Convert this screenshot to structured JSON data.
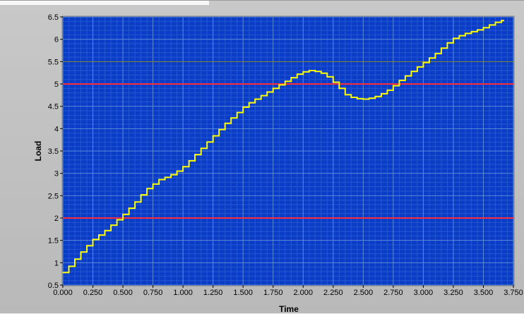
{
  "chart_data": {
    "type": "line",
    "title": "",
    "xlabel": "Time",
    "ylabel": "Load",
    "xlim": [
      0,
      3.75
    ],
    "ylim": [
      0.5,
      6.5
    ],
    "x_ticks": [
      "0.000",
      "0.250",
      "0.500",
      "0.750",
      "1.000",
      "1.250",
      "1.500",
      "1.750",
      "2.000",
      "2.250",
      "2.500",
      "2.750",
      "3.000",
      "3.250",
      "3.500",
      "3.750"
    ],
    "y_ticks": [
      "0.5",
      "1",
      "1.5",
      "2",
      "2.5",
      "3",
      "3.5",
      "4",
      "4.5",
      "5",
      "5.5",
      "6",
      "6.5"
    ],
    "grid": true,
    "legend": "none",
    "step": true,
    "series": [
      {
        "color": "#ffff00",
        "points": [
          [
            0.0,
            0.78
          ],
          [
            0.05,
            0.92
          ],
          [
            0.1,
            1.08
          ],
          [
            0.15,
            1.24
          ],
          [
            0.2,
            1.38
          ],
          [
            0.25,
            1.52
          ],
          [
            0.3,
            1.62
          ],
          [
            0.35,
            1.72
          ],
          [
            0.4,
            1.84
          ],
          [
            0.45,
            1.96
          ],
          [
            0.5,
            2.08
          ],
          [
            0.55,
            2.22
          ],
          [
            0.6,
            2.36
          ],
          [
            0.65,
            2.52
          ],
          [
            0.7,
            2.66
          ],
          [
            0.75,
            2.76
          ],
          [
            0.8,
            2.86
          ],
          [
            0.85,
            2.91
          ],
          [
            0.9,
            2.97
          ],
          [
            0.95,
            3.05
          ],
          [
            1.0,
            3.15
          ],
          [
            1.05,
            3.28
          ],
          [
            1.1,
            3.42
          ],
          [
            1.15,
            3.56
          ],
          [
            1.2,
            3.7
          ],
          [
            1.25,
            3.84
          ],
          [
            1.3,
            3.98
          ],
          [
            1.35,
            4.12
          ],
          [
            1.4,
            4.24
          ],
          [
            1.45,
            4.36
          ],
          [
            1.5,
            4.48
          ],
          [
            1.55,
            4.58
          ],
          [
            1.6,
            4.66
          ],
          [
            1.65,
            4.74
          ],
          [
            1.7,
            4.82
          ],
          [
            1.75,
            4.9
          ],
          [
            1.8,
            4.98
          ],
          [
            1.85,
            5.06
          ],
          [
            1.9,
            5.14
          ],
          [
            1.95,
            5.22
          ],
          [
            2.0,
            5.27
          ],
          [
            2.05,
            5.3
          ],
          [
            2.1,
            5.28
          ],
          [
            2.15,
            5.24
          ],
          [
            2.2,
            5.16
          ],
          [
            2.25,
            5.04
          ],
          [
            2.3,
            4.9
          ],
          [
            2.35,
            4.76
          ],
          [
            2.4,
            4.7
          ],
          [
            2.45,
            4.67
          ],
          [
            2.5,
            4.66
          ],
          [
            2.55,
            4.68
          ],
          [
            2.6,
            4.72
          ],
          [
            2.65,
            4.78
          ],
          [
            2.7,
            4.86
          ],
          [
            2.75,
            4.96
          ],
          [
            2.8,
            5.08
          ],
          [
            2.85,
            5.18
          ],
          [
            2.9,
            5.28
          ],
          [
            2.95,
            5.38
          ],
          [
            3.0,
            5.48
          ],
          [
            3.05,
            5.58
          ],
          [
            3.1,
            5.68
          ],
          [
            3.15,
            5.8
          ],
          [
            3.2,
            5.92
          ],
          [
            3.25,
            6.02
          ],
          [
            3.3,
            6.08
          ],
          [
            3.35,
            6.13
          ],
          [
            3.4,
            6.17
          ],
          [
            3.45,
            6.21
          ],
          [
            3.5,
            6.26
          ],
          [
            3.55,
            6.32
          ],
          [
            3.6,
            6.38
          ],
          [
            3.65,
            6.42
          ]
        ]
      }
    ],
    "reference_lines": [
      {
        "y": 5,
        "color": "#ff2d3c"
      },
      {
        "y": 2,
        "color": "#ff2d3c"
      }
    ],
    "colors": {
      "plot_background": "#0a3cc8",
      "major_grid": "#5c8ad8",
      "minor_grid": "#2457cf",
      "highlight_grid": "#8a8a2e"
    }
  }
}
